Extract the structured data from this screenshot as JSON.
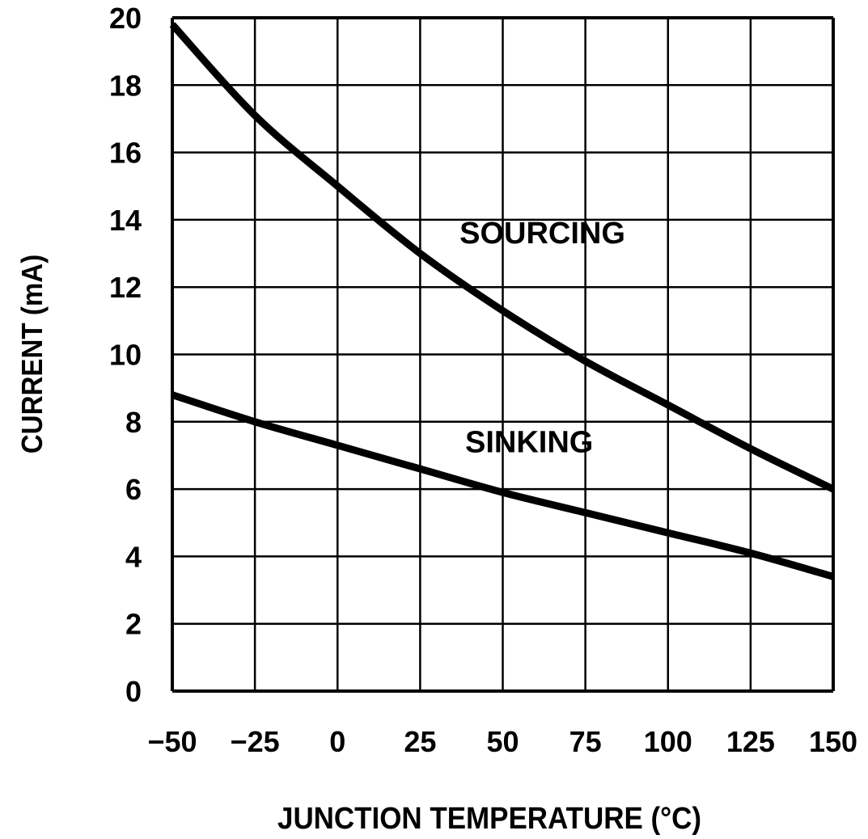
{
  "chart_data": {
    "type": "line",
    "title": "",
    "xlabel": "JUNCTION TEMPERATURE (°C)",
    "ylabel": "CURRENT (mA)",
    "xlim": [
      -50,
      150
    ],
    "ylim": [
      0,
      20
    ],
    "grid": true,
    "x_ticks": [
      -50,
      -25,
      0,
      25,
      50,
      75,
      100,
      125,
      150
    ],
    "x_tick_labels": [
      "−50",
      "−25",
      "0",
      "25",
      "50",
      "75",
      "100",
      "125",
      "150"
    ],
    "y_ticks": [
      0,
      2,
      4,
      6,
      8,
      10,
      12,
      14,
      16,
      18,
      20
    ],
    "y_tick_labels": [
      "0",
      "2",
      "4",
      "6",
      "8",
      "10",
      "12",
      "14",
      "16",
      "18",
      "20"
    ],
    "x": [
      -50,
      -25,
      0,
      25,
      50,
      75,
      100,
      125,
      150
    ],
    "series": [
      {
        "name": "SOURCING",
        "values": [
          19.8,
          17.1,
          15.0,
          13.0,
          11.3,
          9.8,
          8.5,
          7.2,
          6.0
        ],
        "label_at": [
          62,
          13.3
        ]
      },
      {
        "name": "SINKING",
        "values": [
          8.8,
          8.0,
          7.3,
          6.6,
          5.9,
          5.3,
          4.7,
          4.1,
          3.4
        ],
        "label_at": [
          58,
          7.1
        ]
      }
    ],
    "line_color": "#000000",
    "background": "#ffffff"
  }
}
